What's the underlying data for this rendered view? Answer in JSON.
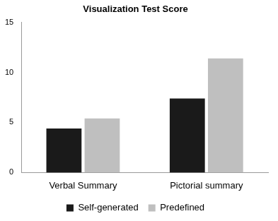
{
  "chart_data": {
    "type": "bar",
    "title": "Visualization Test Score",
    "categories": [
      "Verbal Summary",
      "Pictorial summary"
    ],
    "series": [
      {
        "name": "Self-generated",
        "color": "#1a1a1a",
        "values": [
          4.4,
          7.4
        ]
      },
      {
        "name": "Predefined",
        "color": "#bfbfbf",
        "values": [
          5.4,
          11.4
        ]
      }
    ],
    "ylim": [
      0,
      15
    ],
    "yticks": [
      0,
      5,
      10,
      15
    ],
    "grid": false,
    "legend": "bottom"
  }
}
